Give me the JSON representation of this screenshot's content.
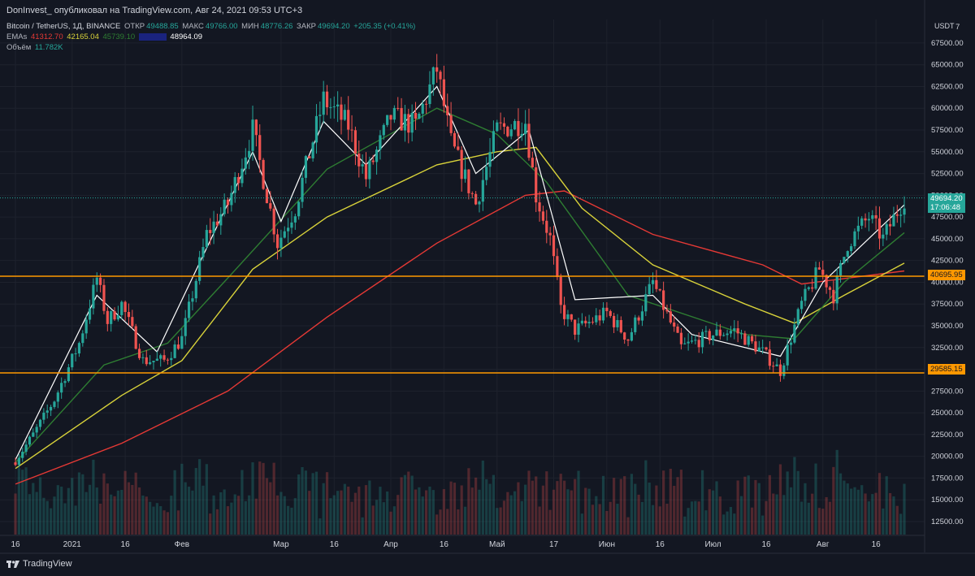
{
  "header": {
    "published": "DonInvest_ опубликовал на TradingView.com, Авг 24, 2021 09:53 UTC+3"
  },
  "legend": {
    "symbol": "Bitcoin / TetherUS, 1Д, BINANCE",
    "open_label": "ОТКР",
    "open": "49488.85",
    "high_label": "МАКС",
    "high": "49766.00",
    "low_label": "МИН",
    "low": "48776.26",
    "close_label": "ЗАКР",
    "close": "49694.20",
    "change": "+205.35 (+0.41%)",
    "emas_label": "EMAs",
    "ema_values": [
      "41312.70",
      "42165.04",
      "45739.10",
      "",
      "48964.09"
    ],
    "volume_label": "Объём",
    "volume": "11.782K"
  },
  "colors": {
    "background": "#131722",
    "up": "#26a69a",
    "down": "#ef5350",
    "ema200": "#e53935",
    "ema100": "#d8d23a",
    "ema50": "#2e7d32",
    "ema20": "#1a237e",
    "ema8": "#ffffff",
    "level": "#ff9800"
  },
  "axis": {
    "currency": "USDT",
    "top_clip_label": "7",
    "y_ticks": [
      "67500.00",
      "65000.00",
      "62500.00",
      "60000.00",
      "57500.00",
      "55000.00",
      "52500.00",
      "50000.00",
      "47500.00",
      "45000.00",
      "42500.00",
      "40000.00",
      "37500.00",
      "35000.00",
      "32500.00",
      "30000.00",
      "27500.00",
      "25000.00",
      "22500.00",
      "20000.00",
      "17500.00",
      "15000.00",
      "12500.00"
    ],
    "x_labels": [
      "16",
      "2021",
      "16",
      "Фев",
      "Мар",
      "16",
      "Апр",
      "16",
      "Май",
      "17",
      "Июн",
      "16",
      "Июл",
      "16",
      "Авг",
      "16"
    ]
  },
  "price_tags": {
    "last_price": "49694.20",
    "countdown": "17:06:48",
    "level_upper": "40695.95",
    "level_lower": "29585.15"
  },
  "footer": {
    "brand": "TradingView"
  },
  "chart_data": {
    "type": "candlestick",
    "title": "Bitcoin / TetherUS, 1Д, BINANCE",
    "y_unit": "USDT",
    "ylim": [
      9500,
      70000
    ],
    "x_range": [
      "2020-12-16",
      "2021-08-24"
    ],
    "horizontal_levels": [
      40695.95,
      29585.15
    ],
    "last_price": 49694.2,
    "price_path": [
      {
        "date": "2020-12-16",
        "price": 19500
      },
      {
        "date": "2020-12-21",
        "price": 22500
      },
      {
        "date": "2020-12-27",
        "price": 26500
      },
      {
        "date": "2021-01-03",
        "price": 33000
      },
      {
        "date": "2021-01-08",
        "price": 40500
      },
      {
        "date": "2021-01-11",
        "price": 35500
      },
      {
        "date": "2021-01-15",
        "price": 37500
      },
      {
        "date": "2021-01-21",
        "price": 31000
      },
      {
        "date": "2021-01-27",
        "price": 31000
      },
      {
        "date": "2021-02-01",
        "price": 33500
      },
      {
        "date": "2021-02-08",
        "price": 45500
      },
      {
        "date": "2021-02-14",
        "price": 49000
      },
      {
        "date": "2021-02-21",
        "price": 57500
      },
      {
        "date": "2021-02-28",
        "price": 44500
      },
      {
        "date": "2021-03-05",
        "price": 48500
      },
      {
        "date": "2021-03-13",
        "price": 61000
      },
      {
        "date": "2021-03-20",
        "price": 58000
      },
      {
        "date": "2021-03-25",
        "price": 52000
      },
      {
        "date": "2021-04-01",
        "price": 59000
      },
      {
        "date": "2021-04-08",
        "price": 58000
      },
      {
        "date": "2021-04-14",
        "price": 64500
      },
      {
        "date": "2021-04-18",
        "price": 56000
      },
      {
        "date": "2021-04-25",
        "price": 49000
      },
      {
        "date": "2021-05-01",
        "price": 57500
      },
      {
        "date": "2021-05-09",
        "price": 58500
      },
      {
        "date": "2021-05-12",
        "price": 50000
      },
      {
        "date": "2021-05-16",
        "price": 45000
      },
      {
        "date": "2021-05-19",
        "price": 37000
      },
      {
        "date": "2021-05-23",
        "price": 34500
      },
      {
        "date": "2021-06-01",
        "price": 36500
      },
      {
        "date": "2021-06-07",
        "price": 33500
      },
      {
        "date": "2021-06-14",
        "price": 40000
      },
      {
        "date": "2021-06-22",
        "price": 32500
      },
      {
        "date": "2021-07-01",
        "price": 34000
      },
      {
        "date": "2021-07-07",
        "price": 34500
      },
      {
        "date": "2021-07-15",
        "price": 32000
      },
      {
        "date": "2021-07-20",
        "price": 29800
      },
      {
        "date": "2021-07-26",
        "price": 37500
      },
      {
        "date": "2021-07-31",
        "price": 41500
      },
      {
        "date": "2021-08-04",
        "price": 38500
      },
      {
        "date": "2021-08-08",
        "price": 44500
      },
      {
        "date": "2021-08-14",
        "price": 47500
      },
      {
        "date": "2021-08-18",
        "price": 45000
      },
      {
        "date": "2021-08-24",
        "price": 49694
      }
    ],
    "series": [
      {
        "name": "EMA 200",
        "color": "#e53935",
        "points": [
          {
            "date": "2020-12-16",
            "price": 16800
          },
          {
            "date": "2021-01-15",
            "price": 21500
          },
          {
            "date": "2021-02-14",
            "price": 27500
          },
          {
            "date": "2021-03-14",
            "price": 36000
          },
          {
            "date": "2021-04-14",
            "price": 44500
          },
          {
            "date": "2021-05-09",
            "price": 50000
          },
          {
            "date": "2021-05-20",
            "price": 50500
          },
          {
            "date": "2021-06-14",
            "price": 45500
          },
          {
            "date": "2021-07-15",
            "price": 42000
          },
          {
            "date": "2021-07-26",
            "price": 39800
          },
          {
            "date": "2021-08-24",
            "price": 41300
          }
        ]
      },
      {
        "name": "EMA 100",
        "color": "#d8d23a",
        "points": [
          {
            "date": "2020-12-16",
            "price": 18600
          },
          {
            "date": "2021-01-15",
            "price": 27000
          },
          {
            "date": "2021-02-01",
            "price": 31000
          },
          {
            "date": "2021-02-21",
            "price": 41500
          },
          {
            "date": "2021-03-14",
            "price": 47500
          },
          {
            "date": "2021-04-14",
            "price": 53500
          },
          {
            "date": "2021-05-01",
            "price": 55000
          },
          {
            "date": "2021-05-12",
            "price": 55500
          },
          {
            "date": "2021-05-25",
            "price": 48500
          },
          {
            "date": "2021-06-14",
            "price": 42000
          },
          {
            "date": "2021-07-10",
            "price": 37500
          },
          {
            "date": "2021-07-24",
            "price": 35300
          },
          {
            "date": "2021-08-07",
            "price": 38500
          },
          {
            "date": "2021-08-24",
            "price": 42200
          }
        ]
      },
      {
        "name": "EMA 50",
        "color": "#2e7d32",
        "points": [
          {
            "date": "2020-12-16",
            "price": 19300
          },
          {
            "date": "2021-01-10",
            "price": 30500
          },
          {
            "date": "2021-01-28",
            "price": 33000
          },
          {
            "date": "2021-02-14",
            "price": 40500
          },
          {
            "date": "2021-03-14",
            "price": 53000
          },
          {
            "date": "2021-04-14",
            "price": 60000
          },
          {
            "date": "2021-05-01",
            "price": 57000
          },
          {
            "date": "2021-05-15",
            "price": 51500
          },
          {
            "date": "2021-06-07",
            "price": 38500
          },
          {
            "date": "2021-07-10",
            "price": 34000
          },
          {
            "date": "2021-07-24",
            "price": 33500
          },
          {
            "date": "2021-08-07",
            "price": 40000
          },
          {
            "date": "2021-08-24",
            "price": 45700
          }
        ]
      },
      {
        "name": "EMA 8",
        "color": "#ffffff",
        "points": [
          {
            "date": "2020-12-16",
            "price": 19600
          },
          {
            "date": "2021-01-08",
            "price": 38500
          },
          {
            "date": "2021-01-25",
            "price": 32000
          },
          {
            "date": "2021-02-21",
            "price": 55000
          },
          {
            "date": "2021-03-01",
            "price": 47000
          },
          {
            "date": "2021-03-13",
            "price": 58500
          },
          {
            "date": "2021-03-25",
            "price": 53500
          },
          {
            "date": "2021-04-14",
            "price": 62500
          },
          {
            "date": "2021-04-25",
            "price": 52500
          },
          {
            "date": "2021-05-10",
            "price": 57500
          },
          {
            "date": "2021-05-23",
            "price": 38000
          },
          {
            "date": "2021-06-14",
            "price": 38500
          },
          {
            "date": "2021-06-25",
            "price": 34000
          },
          {
            "date": "2021-07-20",
            "price": 31500
          },
          {
            "date": "2021-08-01",
            "price": 40000
          },
          {
            "date": "2021-08-24",
            "price": 48900
          }
        ]
      }
    ]
  }
}
